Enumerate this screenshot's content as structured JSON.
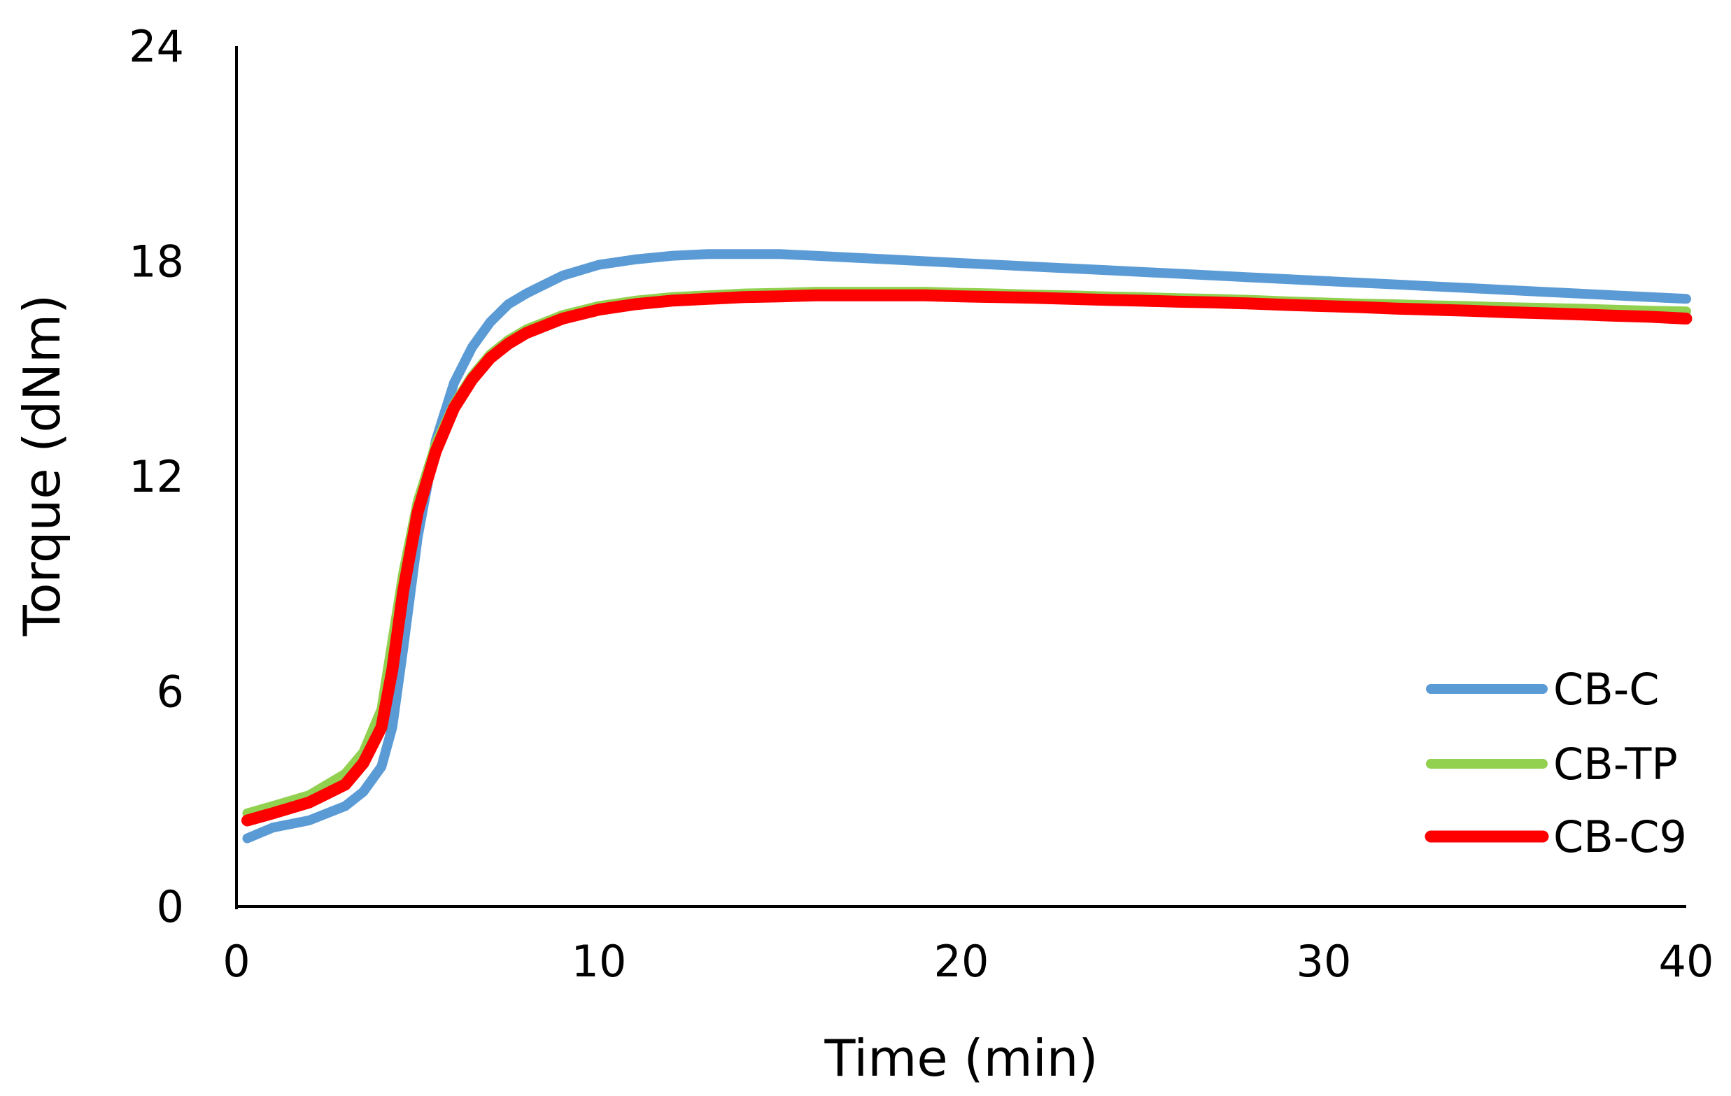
{
  "chart_data": {
    "type": "line",
    "title": "",
    "xlabel": "Time (min)",
    "ylabel": "Torque (dNm)",
    "xlim": [
      0,
      40
    ],
    "ylim": [
      0,
      24
    ],
    "xticks": [
      "0",
      "10",
      "20",
      "30",
      "40"
    ],
    "yticks": [
      "0",
      "6",
      "12",
      "18",
      "24"
    ],
    "grid": false,
    "legend": "bottom-right",
    "series": [
      {
        "name": "CB-C",
        "color": "#5B9BD5",
        "x": [
          0.3,
          1,
          2,
          3,
          3.5,
          4,
          4.3,
          4.6,
          5,
          5.5,
          6,
          6.5,
          7,
          7.5,
          8,
          9,
          10,
          11,
          12,
          13,
          14,
          15,
          16,
          17,
          18,
          19,
          20,
          21,
          22,
          23,
          24,
          25,
          26,
          27,
          28,
          29,
          30,
          31,
          32,
          33,
          34,
          35,
          36,
          37,
          38,
          39,
          40
        ],
        "y": [
          1.9,
          2.2,
          2.4,
          2.8,
          3.2,
          3.9,
          5.0,
          7.2,
          10.3,
          13.0,
          14.6,
          15.6,
          16.3,
          16.8,
          17.1,
          17.6,
          17.9,
          18.05,
          18.15,
          18.2,
          18.2,
          18.2,
          18.15,
          18.1,
          18.05,
          18.0,
          17.95,
          17.9,
          17.85,
          17.8,
          17.75,
          17.7,
          17.65,
          17.6,
          17.55,
          17.5,
          17.45,
          17.4,
          17.35,
          17.3,
          17.25,
          17.2,
          17.15,
          17.1,
          17.05,
          17.0,
          16.95
        ]
      },
      {
        "name": "CB-TP",
        "color": "#92D050",
        "x": [
          0.3,
          1,
          2,
          3,
          3.5,
          4,
          4.3,
          4.6,
          5,
          5.5,
          6,
          6.5,
          7,
          7.5,
          8,
          9,
          10,
          11,
          12,
          13,
          14,
          15,
          16,
          17,
          18,
          19,
          20,
          21,
          22,
          23,
          24,
          25,
          26,
          27,
          28,
          29,
          30,
          31,
          32,
          33,
          34,
          35,
          36,
          37,
          38,
          39,
          40
        ],
        "y": [
          2.6,
          2.8,
          3.1,
          3.7,
          4.3,
          5.5,
          7.4,
          9.3,
          11.3,
          12.9,
          14.0,
          14.8,
          15.4,
          15.8,
          16.1,
          16.5,
          16.75,
          16.9,
          17.0,
          17.05,
          17.1,
          17.12,
          17.15,
          17.15,
          17.15,
          17.15,
          17.12,
          17.1,
          17.07,
          17.05,
          17.02,
          17.0,
          16.97,
          16.95,
          16.92,
          16.88,
          16.85,
          16.82,
          16.8,
          16.77,
          16.75,
          16.72,
          16.7,
          16.68,
          16.65,
          16.62,
          16.6
        ]
      },
      {
        "name": "CB-C9",
        "color": "#FF0000",
        "x": [
          0.3,
          1,
          2,
          3,
          3.5,
          4,
          4.3,
          4.6,
          5,
          5.5,
          6,
          6.5,
          7,
          7.5,
          8,
          9,
          10,
          11,
          12,
          13,
          14,
          15,
          16,
          17,
          18,
          19,
          20,
          21,
          22,
          23,
          24,
          25,
          26,
          27,
          28,
          29,
          30,
          31,
          32,
          33,
          34,
          35,
          36,
          37,
          38,
          39,
          40
        ],
        "y": [
          2.4,
          2.6,
          2.9,
          3.4,
          4.0,
          5.0,
          6.6,
          8.8,
          11.0,
          12.7,
          13.9,
          14.7,
          15.3,
          15.7,
          16.0,
          16.4,
          16.65,
          16.8,
          16.9,
          16.95,
          17.0,
          17.02,
          17.05,
          17.05,
          17.05,
          17.05,
          17.02,
          17.0,
          16.98,
          16.95,
          16.92,
          16.9,
          16.87,
          16.85,
          16.82,
          16.78,
          16.75,
          16.72,
          16.68,
          16.65,
          16.62,
          16.58,
          16.55,
          16.52,
          16.48,
          16.45,
          16.4
        ]
      }
    ]
  }
}
